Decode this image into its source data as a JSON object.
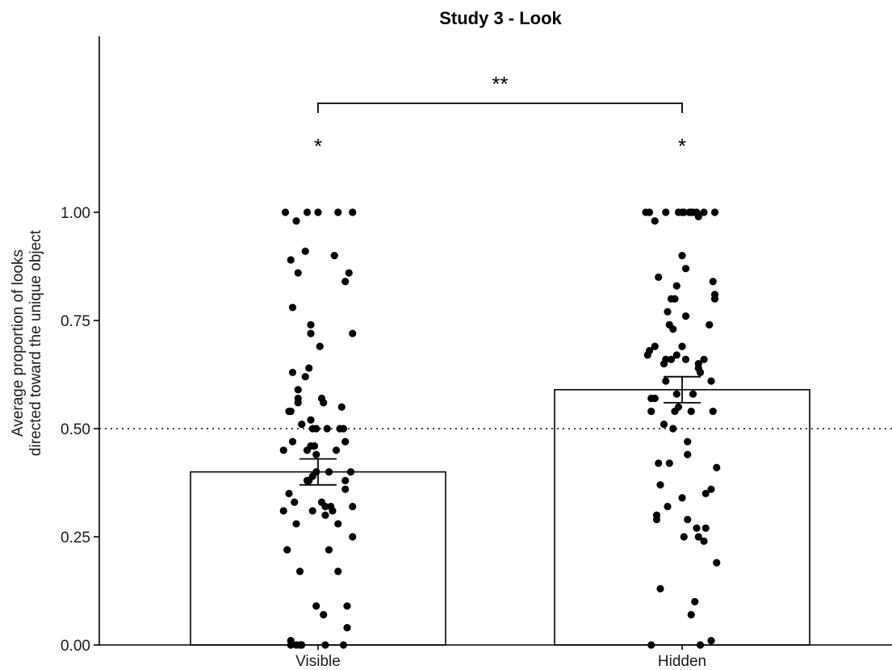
{
  "chart_data": {
    "type": "bar",
    "title": "Study 3 - Look",
    "xlabel": "",
    "ylabel_lines": [
      "Average proportion of looks",
      "directed toward the unique object"
    ],
    "categories": [
      "Visible",
      "Hidden"
    ],
    "values": [
      0.4,
      0.59
    ],
    "error": [
      {
        "low": 0.37,
        "high": 0.43
      },
      {
        "low": 0.56,
        "high": 0.62
      }
    ],
    "ylim": [
      0,
      1.25
    ],
    "yticks": [
      0.0,
      0.25,
      0.5,
      0.75,
      1.0
    ],
    "ytick_labels": [
      "0.00",
      "0.25",
      "0.50",
      "0.75",
      "1.00"
    ],
    "reference_line": 0.5,
    "grid": false,
    "significance": {
      "comparison": "**",
      "per_group": [
        "*",
        "*"
      ]
    },
    "points": [
      [
        {
          "x": -0.18,
          "y": 1.0
        },
        {
          "x": -0.12,
          "y": 0.98
        },
        {
          "x": -0.06,
          "y": 1.0
        },
        {
          "x": 0.0,
          "y": 1.0
        },
        {
          "x": 0.11,
          "y": 1.0
        },
        {
          "x": 0.19,
          "y": 1.0
        },
        {
          "x": -0.15,
          "y": 0.89
        },
        {
          "x": -0.07,
          "y": 0.91
        },
        {
          "x": -0.11,
          "y": 0.86
        },
        {
          "x": 0.09,
          "y": 0.9
        },
        {
          "x": 0.17,
          "y": 0.86
        },
        {
          "x": 0.15,
          "y": 0.84
        },
        {
          "x": -0.14,
          "y": 0.78
        },
        {
          "x": 0.19,
          "y": 0.72
        },
        {
          "x": -0.04,
          "y": 0.74
        },
        {
          "x": -0.04,
          "y": 0.72
        },
        {
          "x": 0.01,
          "y": 0.69
        },
        {
          "x": -0.14,
          "y": 0.63
        },
        {
          "x": -0.05,
          "y": 0.64
        },
        {
          "x": -0.07,
          "y": 0.62
        },
        {
          "x": -0.11,
          "y": 0.59
        },
        {
          "x": -0.11,
          "y": 0.57
        },
        {
          "x": -0.11,
          "y": 0.56
        },
        {
          "x": 0.02,
          "y": 0.57
        },
        {
          "x": 0.03,
          "y": 0.56
        },
        {
          "x": -0.16,
          "y": 0.54
        },
        {
          "x": -0.15,
          "y": 0.54
        },
        {
          "x": 0.13,
          "y": 0.55
        },
        {
          "x": -0.14,
          "y": 0.47
        },
        {
          "x": -0.09,
          "y": 0.51
        },
        {
          "x": -0.04,
          "y": 0.52
        },
        {
          "x": -0.03,
          "y": 0.5
        },
        {
          "x": -0.01,
          "y": 0.5
        },
        {
          "x": 0.05,
          "y": 0.5
        },
        {
          "x": 0.12,
          "y": 0.5
        },
        {
          "x": 0.14,
          "y": 0.5
        },
        {
          "x": 0.15,
          "y": 0.47
        },
        {
          "x": -0.19,
          "y": 0.45
        },
        {
          "x": -0.06,
          "y": 0.45
        },
        {
          "x": -0.04,
          "y": 0.46
        },
        {
          "x": -0.02,
          "y": 0.46
        },
        {
          "x": -0.01,
          "y": 0.44
        },
        {
          "x": 0.1,
          "y": 0.45
        },
        {
          "x": -0.06,
          "y": 0.38
        },
        {
          "x": -0.05,
          "y": 0.38
        },
        {
          "x": -0.03,
          "y": 0.39
        },
        {
          "x": -0.01,
          "y": 0.4
        },
        {
          "x": 0.06,
          "y": 0.4
        },
        {
          "x": 0.15,
          "y": 0.38
        },
        {
          "x": 0.15,
          "y": 0.36
        },
        {
          "x": 0.18,
          "y": 0.4
        },
        {
          "x": -0.16,
          "y": 0.35
        },
        {
          "x": -0.13,
          "y": 0.33
        },
        {
          "x": -0.19,
          "y": 0.31
        },
        {
          "x": -0.12,
          "y": 0.28
        },
        {
          "x": -0.03,
          "y": 0.31
        },
        {
          "x": 0.02,
          "y": 0.33
        },
        {
          "x": 0.04,
          "y": 0.32
        },
        {
          "x": 0.07,
          "y": 0.32
        },
        {
          "x": 0.08,
          "y": 0.31
        },
        {
          "x": 0.04,
          "y": 0.3
        },
        {
          "x": 0.11,
          "y": 0.28
        },
        {
          "x": 0.19,
          "y": 0.32
        },
        {
          "x": 0.19,
          "y": 0.25
        },
        {
          "x": -0.17,
          "y": 0.22
        },
        {
          "x": 0.06,
          "y": 0.22
        },
        {
          "x": -0.1,
          "y": 0.17
        },
        {
          "x": 0.11,
          "y": 0.17
        },
        {
          "x": -0.01,
          "y": 0.09
        },
        {
          "x": 0.03,
          "y": 0.07
        },
        {
          "x": 0.16,
          "y": 0.09
        },
        {
          "x": 0.16,
          "y": 0.04
        },
        {
          "x": -0.15,
          "y": 0.01
        },
        {
          "x": -0.15,
          "y": 0.0
        },
        {
          "x": -0.12,
          "y": 0.0
        },
        {
          "x": -0.1,
          "y": 0.0
        },
        {
          "x": -0.09,
          "y": 0.0
        },
        {
          "x": 0.04,
          "y": 0.0
        },
        {
          "x": 0.14,
          "y": 0.0
        }
      ],
      [
        {
          "x": -0.2,
          "y": 1.0
        },
        {
          "x": -0.18,
          "y": 1.0
        },
        {
          "x": -0.15,
          "y": 0.98
        },
        {
          "x": -0.09,
          "y": 1.0
        },
        {
          "x": -0.02,
          "y": 1.0
        },
        {
          "x": 0.0,
          "y": 1.0
        },
        {
          "x": 0.01,
          "y": 1.0
        },
        {
          "x": 0.04,
          "y": 1.0
        },
        {
          "x": 0.05,
          "y": 1.0
        },
        {
          "x": 0.06,
          "y": 1.0
        },
        {
          "x": 0.08,
          "y": 1.0
        },
        {
          "x": 0.09,
          "y": 0.99
        },
        {
          "x": 0.12,
          "y": 1.0
        },
        {
          "x": 0.18,
          "y": 1.0
        },
        {
          "x": -0.13,
          "y": 0.85
        },
        {
          "x": 0.0,
          "y": 0.9
        },
        {
          "x": 0.02,
          "y": 0.87
        },
        {
          "x": -0.03,
          "y": 0.83
        },
        {
          "x": -0.06,
          "y": 0.8
        },
        {
          "x": -0.04,
          "y": 0.8
        },
        {
          "x": 0.17,
          "y": 0.84
        },
        {
          "x": 0.18,
          "y": 0.81
        },
        {
          "x": 0.18,
          "y": 0.8
        },
        {
          "x": -0.08,
          "y": 0.77
        },
        {
          "x": -0.07,
          "y": 0.74
        },
        {
          "x": -0.05,
          "y": 0.73
        },
        {
          "x": 0.02,
          "y": 0.76
        },
        {
          "x": 0.15,
          "y": 0.74
        },
        {
          "x": -0.19,
          "y": 0.67
        },
        {
          "x": -0.18,
          "y": 0.68
        },
        {
          "x": -0.15,
          "y": 0.69
        },
        {
          "x": -0.06,
          "y": 0.66
        },
        {
          "x": -0.1,
          "y": 0.65
        },
        {
          "x": -0.09,
          "y": 0.66
        },
        {
          "x": -0.03,
          "y": 0.67
        },
        {
          "x": 0.0,
          "y": 0.69
        },
        {
          "x": 0.02,
          "y": 0.66
        },
        {
          "x": 0.09,
          "y": 0.65
        },
        {
          "x": 0.09,
          "y": 0.64
        },
        {
          "x": 0.1,
          "y": 0.63
        },
        {
          "x": 0.12,
          "y": 0.66
        },
        {
          "x": 0.16,
          "y": 0.61
        },
        {
          "x": -0.17,
          "y": 0.57
        },
        {
          "x": -0.15,
          "y": 0.57
        },
        {
          "x": -0.09,
          "y": 0.61
        },
        {
          "x": -0.03,
          "y": 0.58
        },
        {
          "x": 0.06,
          "y": 0.58
        },
        {
          "x": -0.17,
          "y": 0.54
        },
        {
          "x": -0.04,
          "y": 0.54
        },
        {
          "x": -0.02,
          "y": 0.55
        },
        {
          "x": 0.05,
          "y": 0.54
        },
        {
          "x": 0.17,
          "y": 0.54
        },
        {
          "x": -0.1,
          "y": 0.51
        },
        {
          "x": -0.05,
          "y": 0.5
        },
        {
          "x": 0.03,
          "y": 0.47
        },
        {
          "x": -0.13,
          "y": 0.42
        },
        {
          "x": -0.07,
          "y": 0.42
        },
        {
          "x": 0.03,
          "y": 0.44
        },
        {
          "x": -0.12,
          "y": 0.37
        },
        {
          "x": 0.19,
          "y": 0.41
        },
        {
          "x": -0.14,
          "y": 0.3
        },
        {
          "x": -0.14,
          "y": 0.29
        },
        {
          "x": -0.08,
          "y": 0.32
        },
        {
          "x": 0.0,
          "y": 0.34
        },
        {
          "x": 0.03,
          "y": 0.29
        },
        {
          "x": 0.13,
          "y": 0.35
        },
        {
          "x": 0.16,
          "y": 0.36
        },
        {
          "x": 0.01,
          "y": 0.25
        },
        {
          "x": 0.08,
          "y": 0.27
        },
        {
          "x": 0.09,
          "y": 0.25
        },
        {
          "x": 0.12,
          "y": 0.24
        },
        {
          "x": 0.13,
          "y": 0.27
        },
        {
          "x": 0.19,
          "y": 0.19
        },
        {
          "x": -0.12,
          "y": 0.13
        },
        {
          "x": 0.07,
          "y": 0.1
        },
        {
          "x": 0.05,
          "y": 0.07
        },
        {
          "x": -0.17,
          "y": 0.0
        },
        {
          "x": 0.1,
          "y": 0.0
        },
        {
          "x": 0.16,
          "y": 0.01
        }
      ]
    ]
  }
}
